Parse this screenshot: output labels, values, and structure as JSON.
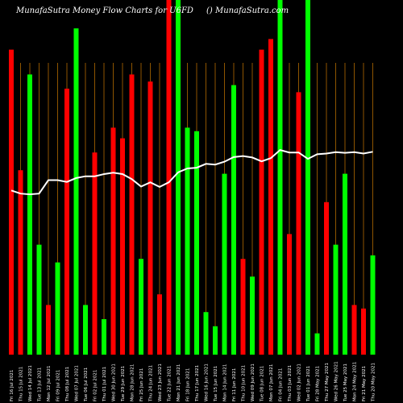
{
  "header": {
    "title": "MunafaSutra  Money Flow  Charts for U6FD",
    "site": "() MunafaSutra.com"
  },
  "chart_data": {
    "type": "bar",
    "title": "MunafaSutra  Money Flow  Charts for U6FD",
    "ylim": [
      0,
      100
    ],
    "colors": {
      "up": "#00ff00",
      "down": "#ff0000",
      "line": "#ffffff",
      "grid": "#b36b00",
      "background": "#000000"
    },
    "bar_colors": [
      "red",
      "red",
      "green",
      "green",
      "red",
      "green",
      "red",
      "green",
      "green",
      "red",
      "green",
      "red",
      "red",
      "red",
      "green",
      "red",
      "red",
      "red",
      "green",
      "green",
      "green",
      "green",
      "green",
      "green",
      "green",
      "red",
      "green",
      "red",
      "red",
      "green",
      "red",
      "red",
      "green",
      "green",
      "red",
      "green",
      "green",
      "red",
      "red",
      "green"
    ],
    "values": [
      86,
      52,
      79,
      31,
      14,
      26,
      75,
      92,
      14,
      57,
      10,
      64,
      61,
      79,
      27,
      77,
      17,
      100,
      100,
      64,
      63,
      12,
      8,
      51,
      76,
      27,
      22,
      86,
      89,
      100,
      34,
      74,
      100,
      6,
      43,
      31,
      51,
      14,
      13,
      28
    ],
    "line_values": [
      46.3,
      45.4,
      45.2,
      45.4,
      49.2,
      49.2,
      48.7,
      49.8,
      50.3,
      50.3,
      50.9,
      51.3,
      50.9,
      49.5,
      47.4,
      48.6,
      47.3,
      48.6,
      51.4,
      52.5,
      52.7,
      53.8,
      53.6,
      54.4,
      55.7,
      56.0,
      55.6,
      54.5,
      55.4,
      57.7,
      57.0,
      57.0,
      55.2,
      56.5,
      56.7,
      57.1,
      56.9,
      57.1,
      56.7,
      57.2
    ],
    "tick_labels": [
      "Fri 16 Jul 2021",
      "Thu 15 Jul 2021",
      "Wed 14 Jul 2021",
      "Tue 13 Jul 2021",
      "Mon 12 Jul 2021",
      "Fri 09 Jul 2021",
      "Thu 08 Jul 2021",
      "Wed 07 Jul 2021",
      "Tue 06 Jul 2021",
      "Fri 02 Jul 2021",
      "Thu 01 Jul 2021",
      "Wed 30 Jun 2021",
      "Tue 29 Jun 2021",
      "Mon 28 Jun 2021",
      "Fri 25 Jun 2021",
      "Thu 24 Jun 2021",
      "Wed 23 Jun 2021",
      "Tue 22 Jun 2021",
      "Mon 21 Jun 2021",
      "Fri 18 Jun 2021",
      "Thu 17 Jun 2021",
      "Wed 16 Jun 2021",
      "Tue 15 Jun 2021",
      "Mon 14 Jun 2021",
      "Fri 11 Jun 2021",
      "Thu 10 Jun 2021",
      "Wed 09 Jun 2021",
      "Tue 08 Jun 2021",
      "Mon 07 Jun 2021",
      "Fri 04 Jun 2021",
      "Thu 03 Jun 2021",
      "Wed 02 Jun 2021",
      "Tue 01 Jun 2021",
      "Fri 28 May 2021",
      "Thu 27 May 2021",
      "Wed 26 May 2021",
      "Tue 25 May 2021",
      "Mon 24 May 2021",
      "Fri 21 May 2021",
      "Thu 20 May 2021"
    ],
    "grid": true
  }
}
